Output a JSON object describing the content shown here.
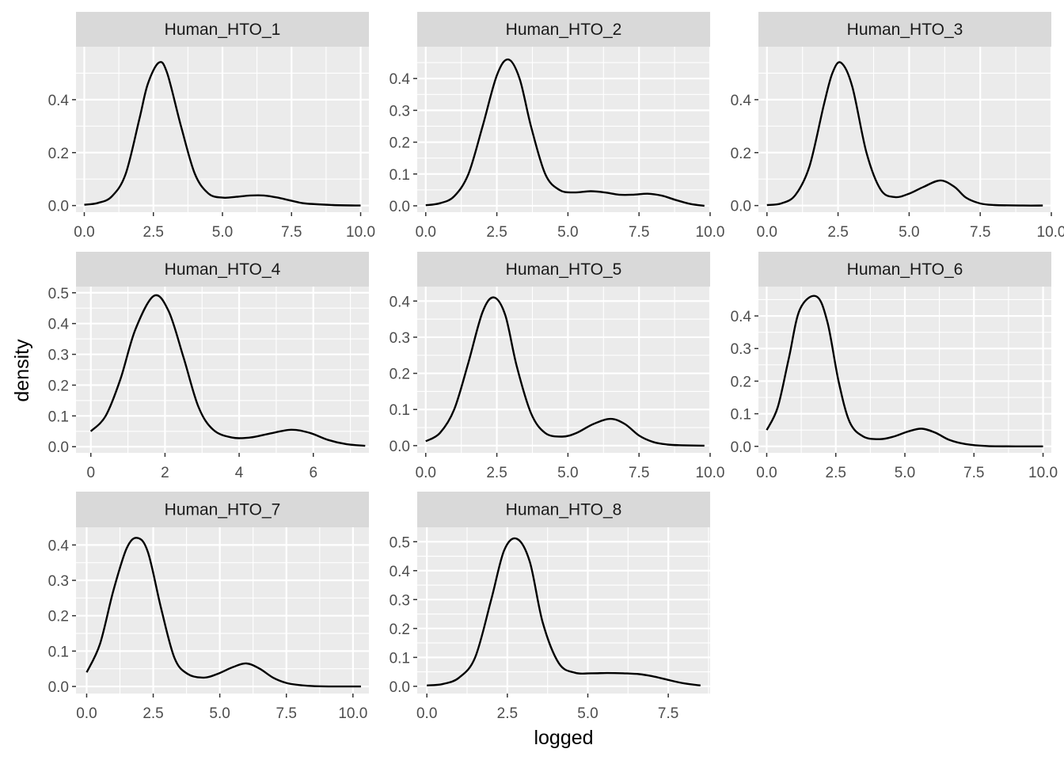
{
  "chart_data": {
    "type": "line",
    "kind": "faceted density plot",
    "xlabel": "logged",
    "ylabel": "density",
    "panels": [
      {
        "title": "Human_HTO_1",
        "xlim": [
          -0.3,
          10.3
        ],
        "ylim": [
          -0.025,
          0.6
        ],
        "xticks": [
          0,
          2.5,
          5,
          7.5,
          10
        ],
        "xtick_labels": [
          "0.0",
          "2.5",
          "5.0",
          "7.5",
          "10.0"
        ],
        "yticks": [
          0,
          0.2,
          0.4
        ],
        "ytick_labels": [
          "0.0",
          "0.2",
          "0.4"
        ],
        "x": [
          0,
          0.5,
          1,
          1.5,
          2,
          2.3,
          2.7,
          3,
          3.5,
          4,
          4.5,
          5,
          5.5,
          6,
          6.5,
          7,
          7.5,
          8,
          9,
          10
        ],
        "y": [
          0.003,
          0.01,
          0.035,
          0.12,
          0.33,
          0.46,
          0.54,
          0.5,
          0.3,
          0.12,
          0.045,
          0.03,
          0.033,
          0.038,
          0.038,
          0.03,
          0.018,
          0.008,
          0.002,
          0.0
        ]
      },
      {
        "title": "Human_HTO_2",
        "xlim": [
          -0.3,
          10.0
        ],
        "ylim": [
          -0.02,
          0.5
        ],
        "xticks": [
          0,
          2.5,
          5,
          7.5,
          10
        ],
        "xtick_labels": [
          "0.0",
          "2.5",
          "5.0",
          "7.5",
          "10.0"
        ],
        "yticks": [
          0,
          0.1,
          0.2,
          0.3,
          0.4
        ],
        "ytick_labels": [
          "0.0",
          "0.1",
          "0.2",
          "0.3",
          "0.4"
        ],
        "x": [
          0,
          0.5,
          1,
          1.5,
          2,
          2.5,
          2.9,
          3.3,
          3.7,
          4.2,
          4.7,
          5.2,
          5.8,
          6.3,
          6.8,
          7.3,
          7.8,
          8.3,
          8.8,
          9.3,
          9.8
        ],
        "y": [
          0.002,
          0.008,
          0.03,
          0.1,
          0.25,
          0.41,
          0.46,
          0.4,
          0.25,
          0.1,
          0.05,
          0.042,
          0.046,
          0.042,
          0.035,
          0.035,
          0.038,
          0.032,
          0.018,
          0.006,
          0.0
        ]
      },
      {
        "title": "Human_HTO_3",
        "xlim": [
          -0.3,
          10.0
        ],
        "ylim": [
          -0.025,
          0.6
        ],
        "xticks": [
          0,
          2.5,
          5,
          7.5,
          10
        ],
        "xtick_labels": [
          "0.0",
          "2.5",
          "5.0",
          "7.5",
          "10.0"
        ],
        "yticks": [
          0,
          0.2,
          0.4
        ],
        "ytick_labels": [
          "0.0",
          "0.2",
          "0.4"
        ],
        "x": [
          0,
          0.5,
          1,
          1.5,
          2,
          2.3,
          2.6,
          3,
          3.5,
          4,
          4.5,
          5,
          5.5,
          6.1,
          6.6,
          7,
          7.5,
          8,
          9,
          9.7
        ],
        "y": [
          0.002,
          0.008,
          0.04,
          0.15,
          0.38,
          0.5,
          0.54,
          0.45,
          0.2,
          0.06,
          0.032,
          0.045,
          0.07,
          0.095,
          0.07,
          0.03,
          0.008,
          0.002,
          0.0,
          0.0
        ]
      },
      {
        "title": "Human_HTO_4",
        "xlim": [
          -0.4,
          7.5
        ],
        "ylim": [
          -0.02,
          0.52
        ],
        "xticks": [
          0,
          2,
          4,
          6
        ],
        "xtick_labels": [
          "0",
          "2",
          "4",
          "6"
        ],
        "yticks": [
          0,
          0.1,
          0.2,
          0.3,
          0.4,
          0.5
        ],
        "ytick_labels": [
          "0.0",
          "0.1",
          "0.2",
          "0.3",
          "0.4",
          "0.5"
        ],
        "x": [
          0,
          0.4,
          0.8,
          1.2,
          1.7,
          2.1,
          2.5,
          2.9,
          3.3,
          3.8,
          4.3,
          4.8,
          5.4,
          5.9,
          6.4,
          6.9,
          7.4
        ],
        "y": [
          0.05,
          0.1,
          0.22,
          0.38,
          0.49,
          0.44,
          0.29,
          0.13,
          0.055,
          0.03,
          0.03,
          0.042,
          0.055,
          0.045,
          0.022,
          0.008,
          0.003
        ]
      },
      {
        "title": "Human_HTO_5",
        "xlim": [
          -0.3,
          10.0
        ],
        "ylim": [
          -0.02,
          0.44
        ],
        "xticks": [
          0,
          2.5,
          5,
          7.5,
          10
        ],
        "xtick_labels": [
          "0.0",
          "2.5",
          "5.0",
          "7.5",
          "10.0"
        ],
        "yticks": [
          0,
          0.1,
          0.2,
          0.3,
          0.4
        ],
        "ytick_labels": [
          "0.0",
          "0.1",
          "0.2",
          "0.3",
          "0.4"
        ],
        "x": [
          0,
          0.5,
          1,
          1.5,
          2,
          2.4,
          2.8,
          3.2,
          3.7,
          4.2,
          4.8,
          5.3,
          5.9,
          6.5,
          7,
          7.5,
          8,
          8.5,
          9,
          9.8
        ],
        "y": [
          0.012,
          0.035,
          0.1,
          0.23,
          0.37,
          0.41,
          0.36,
          0.22,
          0.09,
          0.035,
          0.025,
          0.035,
          0.06,
          0.074,
          0.06,
          0.028,
          0.01,
          0.003,
          0.001,
          0.0
        ]
      },
      {
        "title": "Human_HTO_6",
        "xlim": [
          -0.3,
          10.3
        ],
        "ylim": [
          -0.02,
          0.49
        ],
        "xticks": [
          0,
          2.5,
          5,
          7.5,
          10
        ],
        "xtick_labels": [
          "0.0",
          "2.5",
          "5.0",
          "7.5",
          "10.0"
        ],
        "yticks": [
          0,
          0.1,
          0.2,
          0.3,
          0.4
        ],
        "ytick_labels": [
          "0.0",
          "0.1",
          "0.2",
          "0.3",
          "0.4"
        ],
        "x": [
          0,
          0.4,
          0.8,
          1.2,
          1.8,
          2.2,
          2.6,
          3,
          3.5,
          4.1,
          4.6,
          5.1,
          5.6,
          6.1,
          6.6,
          7.2,
          8,
          9,
          10
        ],
        "y": [
          0.05,
          0.12,
          0.27,
          0.42,
          0.46,
          0.38,
          0.2,
          0.075,
          0.03,
          0.022,
          0.03,
          0.045,
          0.054,
          0.042,
          0.02,
          0.007,
          0.001,
          0.0,
          0.0
        ]
      },
      {
        "title": "Human_HTO_7",
        "xlim": [
          -0.4,
          10.6
        ],
        "ylim": [
          -0.02,
          0.45
        ],
        "xticks": [
          0,
          2.5,
          5,
          7.5,
          10
        ],
        "xtick_labels": [
          "0.0",
          "2.5",
          "5.0",
          "7.5",
          "10.0"
        ],
        "yticks": [
          0,
          0.1,
          0.2,
          0.3,
          0.4
        ],
        "ytick_labels": [
          "0.0",
          "0.1",
          "0.2",
          "0.3",
          "0.4"
        ],
        "x": [
          0,
          0.5,
          1,
          1.5,
          1.9,
          2.3,
          2.8,
          3.3,
          3.8,
          4.4,
          4.9,
          5.5,
          6,
          6.5,
          7,
          7.5,
          8,
          8.5,
          9.2,
          10.3
        ],
        "y": [
          0.04,
          0.12,
          0.27,
          0.39,
          0.42,
          0.38,
          0.22,
          0.08,
          0.035,
          0.025,
          0.035,
          0.055,
          0.065,
          0.05,
          0.025,
          0.01,
          0.004,
          0.001,
          0.0,
          0.0
        ]
      },
      {
        "title": "Human_HTO_8",
        "xlim": [
          -0.3,
          8.8
        ],
        "ylim": [
          -0.025,
          0.55
        ],
        "xticks": [
          0,
          2.5,
          5,
          7.5
        ],
        "xtick_labels": [
          "0.0",
          "2.5",
          "5.0",
          "7.5"
        ],
        "yticks": [
          0,
          0.1,
          0.2,
          0.3,
          0.4,
          0.5
        ],
        "ytick_labels": [
          "0.0",
          "0.1",
          "0.2",
          "0.3",
          "0.4",
          "0.5"
        ],
        "x": [
          0,
          0.5,
          1,
          1.5,
          2,
          2.4,
          2.8,
          3.2,
          3.6,
          4.1,
          4.6,
          5.1,
          5.6,
          6.1,
          6.6,
          7,
          7.5,
          8,
          8.5
        ],
        "y": [
          0.003,
          0.008,
          0.03,
          0.1,
          0.3,
          0.47,
          0.51,
          0.43,
          0.22,
          0.08,
          0.047,
          0.045,
          0.046,
          0.045,
          0.042,
          0.035,
          0.022,
          0.01,
          0.003
        ]
      }
    ]
  }
}
